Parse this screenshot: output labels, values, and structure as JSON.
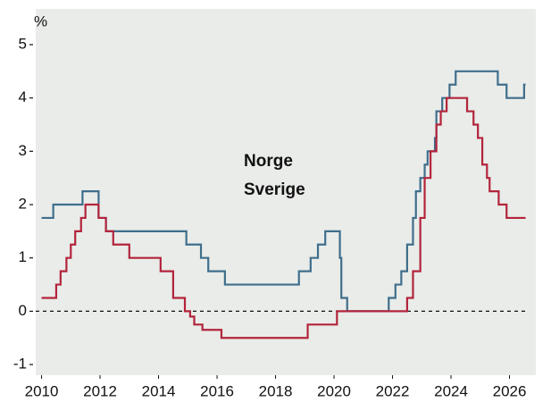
{
  "chart_data": {
    "type": "step",
    "y_label": "%",
    "xlim": [
      2009.8,
      2026.9
    ],
    "xticks": [
      2010,
      2012,
      2014,
      2016,
      2018,
      2020,
      2022,
      2024,
      2026
    ],
    "ylim": [
      -1.2,
      5.67
    ],
    "yticks": [
      -1,
      0,
      1,
      2,
      3,
      4,
      5
    ],
    "hline": 0,
    "series": [
      {
        "name": "Norge",
        "color": "#3f6e8c",
        "x": [
          2010.0,
          2010.4,
          2011.4,
          2011.95,
          2012.2,
          2014.95,
          2015.45,
          2015.7,
          2016.27,
          2018.8,
          2019.2,
          2019.45,
          2019.7,
          2020.2,
          2020.25,
          2020.45,
          2021.87,
          2022.1,
          2022.3,
          2022.5,
          2022.7,
          2022.8,
          2022.95,
          2023.1,
          2023.2,
          2023.45,
          2023.5,
          2023.7,
          2023.95,
          2024.16,
          2025.6,
          2025.9,
          2026.5,
          2026.55
        ],
        "values": [
          1.75,
          2.0,
          2.25,
          1.75,
          1.5,
          1.25,
          1.0,
          0.75,
          0.5,
          0.75,
          1.0,
          1.25,
          1.5,
          1.0,
          0.25,
          0.0,
          0.25,
          0.5,
          0.75,
          1.25,
          1.75,
          2.25,
          2.5,
          2.75,
          3.0,
          3.25,
          3.75,
          4.0,
          4.25,
          4.5,
          4.25,
          4.0,
          4.25,
          4.25
        ]
      },
      {
        "name": "Sverige",
        "color": "#b3243b",
        "x": [
          2010.0,
          2010.5,
          2010.65,
          2010.85,
          2011.0,
          2011.15,
          2011.35,
          2011.5,
          2011.95,
          2012.2,
          2012.45,
          2013.0,
          2014.07,
          2014.5,
          2014.9,
          2015.08,
          2015.22,
          2015.5,
          2016.15,
          2019.1,
          2020.1,
          2022.5,
          2022.7,
          2022.95,
          2023.1,
          2023.3,
          2023.5,
          2023.65,
          2023.85,
          2024.55,
          2024.77,
          2024.92,
          2025.07,
          2025.23,
          2025.32,
          2025.63,
          2025.9,
          2026.55
        ],
        "values": [
          0.25,
          0.5,
          0.75,
          1.0,
          1.25,
          1.5,
          1.75,
          2.0,
          1.75,
          1.5,
          1.25,
          1.0,
          0.75,
          0.25,
          0.0,
          -0.1,
          -0.25,
          -0.35,
          -0.5,
          -0.25,
          0.0,
          0.25,
          0.75,
          1.75,
          2.5,
          3.0,
          3.5,
          3.75,
          4.0,
          3.75,
          3.5,
          3.25,
          2.75,
          2.5,
          2.25,
          2.0,
          1.75,
          1.75
        ]
      }
    ]
  }
}
